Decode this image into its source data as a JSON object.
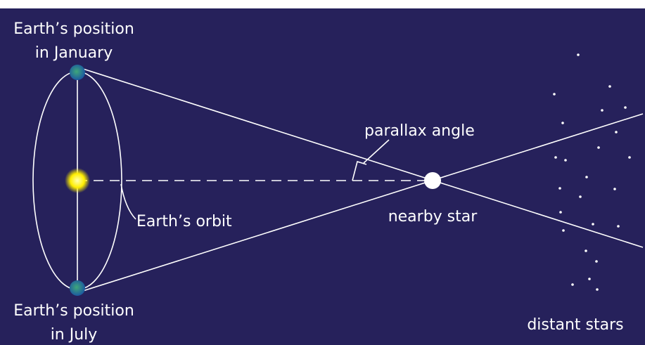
{
  "labels": {
    "january_line1": "Earth’s position",
    "january_line2": "in January",
    "july_line1": "Earth’s position",
    "july_line2": "in July",
    "orbit": "Earth’s orbit",
    "parallax_angle": "parallax angle",
    "nearby_star": "nearby star",
    "distant_stars": "distant stars"
  }
}
